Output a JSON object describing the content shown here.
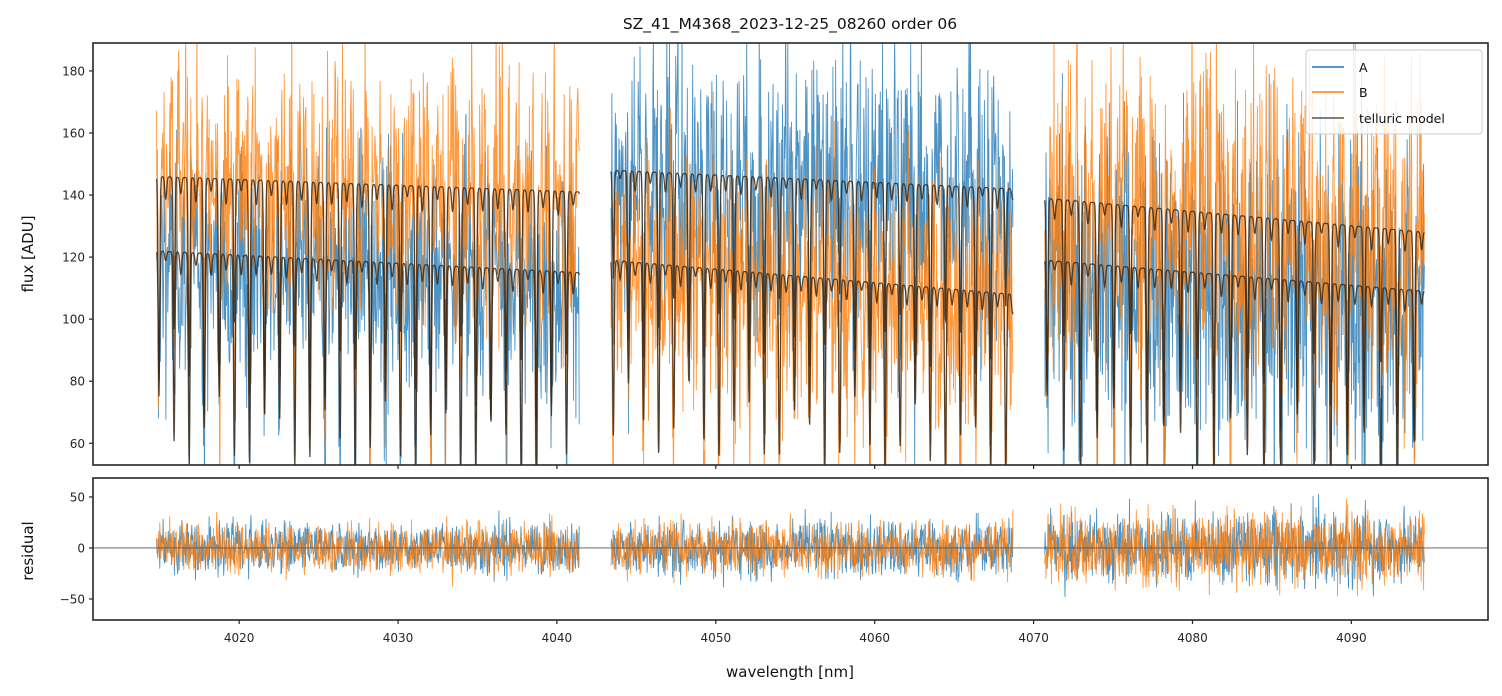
{
  "chart_data": [
    {
      "type": "line",
      "panel": "flux",
      "title": "SZ_41_M4368_2023-12-25_08260  order 06",
      "xlabel": "",
      "ylabel": "flux [ADU]",
      "xlim": [
        4010.8,
        4098.6
      ],
      "ylim": [
        53,
        189
      ],
      "yticks": [
        60,
        80,
        100,
        120,
        140,
        160,
        180
      ],
      "xticks": [
        4020,
        4030,
        4040,
        4050,
        4060,
        4070,
        4080,
        4090
      ],
      "xtick_labels_visible": false,
      "grid": false,
      "legend": {
        "placement": "top-right",
        "entries": [
          {
            "label": "A",
            "color": "#1f77b4"
          },
          {
            "label": "B",
            "color": "#ff7f0e"
          },
          {
            "label": "telluric model",
            "color": "#3a3a3a"
          }
        ]
      },
      "segments": [
        {
          "x_start": 4014.8,
          "x_end": 4041.4,
          "A": {
            "continuum_start": 122,
            "continuum_end": 115,
            "noise": 22
          },
          "B": {
            "continuum_start": 146,
            "continuum_end": 140,
            "noise": 24
          },
          "telluric_A": {
            "level_start": 122,
            "level_end": 115,
            "line_depth": 45,
            "line_spacing_nm": 0.95
          },
          "telluric_B": {
            "level_start": 146,
            "level_end": 141,
            "line_depth": 50,
            "line_spacing_nm": 0.95
          }
        },
        {
          "x_start": 4043.4,
          "x_end": 4068.7,
          "A": {
            "continuum_start": 148,
            "continuum_end": 142,
            "noise": 26
          },
          "B": {
            "continuum_start": 119,
            "continuum_end": 108,
            "noise": 24
          },
          "telluric_A": {
            "level_start": 148,
            "level_end": 142,
            "line_depth": 40,
            "line_spacing_nm": 0.95
          },
          "telluric_B": {
            "level_start": 119,
            "level_end": 108,
            "line_depth": 40,
            "line_spacing_nm": 0.95
          }
        },
        {
          "x_start": 4070.7,
          "x_end": 4094.6,
          "A": {
            "continuum_start": 119,
            "continuum_end": 108,
            "noise": 30
          },
          "B": {
            "continuum_start": 140,
            "continuum_end": 127,
            "noise": 30
          },
          "telluric_A": {
            "level_start": 119,
            "level_end": 109,
            "line_depth": 45,
            "line_spacing_nm": 1.05
          },
          "telluric_B": {
            "level_start": 139,
            "level_end": 128,
            "line_depth": 45,
            "line_spacing_nm": 1.05
          }
        }
      ],
      "series": [
        {
          "name": "A",
          "color": "#1f77b4"
        },
        {
          "name": "B",
          "color": "#ff7f0e"
        },
        {
          "name": "telluric model",
          "color": "#3a3a3a"
        }
      ]
    },
    {
      "type": "line",
      "panel": "residual",
      "xlabel": "wavelength [nm]",
      "ylabel": "residual",
      "xlim": [
        4010.8,
        4098.6
      ],
      "ylim": [
        -70.6,
        68.6
      ],
      "yticks": [
        -50,
        0,
        50
      ],
      "ytick_labels": [
        "−50",
        "0",
        "50"
      ],
      "xticks": [
        4020,
        4030,
        4040,
        4050,
        4060,
        4070,
        4080,
        4090
      ],
      "xtick_labels": [
        "4020",
        "4030",
        "4040",
        "4050",
        "4060",
        "4070",
        "4080",
        "4090"
      ],
      "zero_line": 0,
      "segments": [
        {
          "x_start": 4014.8,
          "x_end": 4041.4,
          "noise_A": 17,
          "noise_B": 17
        },
        {
          "x_start": 4043.4,
          "x_end": 4068.7,
          "noise_A": 19,
          "noise_B": 18
        },
        {
          "x_start": 4070.7,
          "x_end": 4094.6,
          "noise_A": 24,
          "noise_B": 24
        }
      ],
      "series": [
        {
          "name": "A",
          "color": "#1f77b4"
        },
        {
          "name": "B",
          "color": "#ff7f0e"
        }
      ]
    }
  ]
}
